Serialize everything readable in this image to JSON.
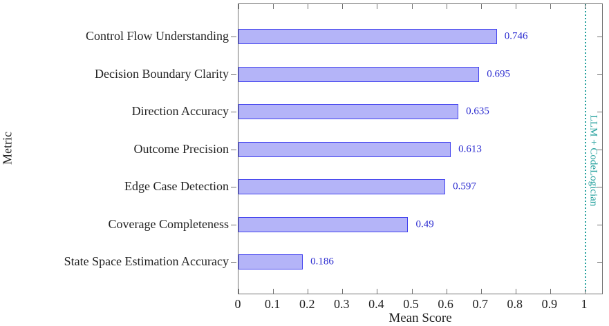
{
  "chart_data": {
    "type": "bar",
    "orientation": "horizontal",
    "title": "",
    "xlabel": "Mean Score",
    "ylabel": "Metric",
    "categories": [
      "Control Flow Understanding",
      "Decision Boundary Clarity",
      "Direction Accuracy",
      "Outcome Precision",
      "Edge Case Detection",
      "Coverage Completeness",
      "State Space Estimation Accuracy"
    ],
    "values": [
      0.746,
      0.695,
      0.635,
      0.613,
      0.597,
      0.49,
      0.186
    ],
    "value_labels": [
      "0.746",
      "0.695",
      "0.635",
      "0.613",
      "0.597",
      "0.49",
      "0.186"
    ],
    "xlim": [
      0,
      1.054
    ],
    "xticks": [
      0,
      0.1,
      0.2,
      0.3,
      0.4,
      0.5,
      0.6,
      0.7,
      0.8,
      0.9,
      1
    ],
    "xtick_labels": [
      "0",
      "0.1",
      "0.2",
      "0.3",
      "0.4",
      "0.5",
      "0.6",
      "0.7",
      "0.8",
      "0.9",
      "1"
    ],
    "grid": false,
    "legend": null,
    "reference_line": {
      "x": 1,
      "label": "LLM + CodeLogician",
      "style": "dotted",
      "color": "#23a09d"
    },
    "colors": {
      "bar_fill": "#b4b4f8",
      "bar_border": "#4343ee",
      "value_text": "#2b2bd0",
      "axis": "#707070",
      "text": "#222222"
    }
  }
}
